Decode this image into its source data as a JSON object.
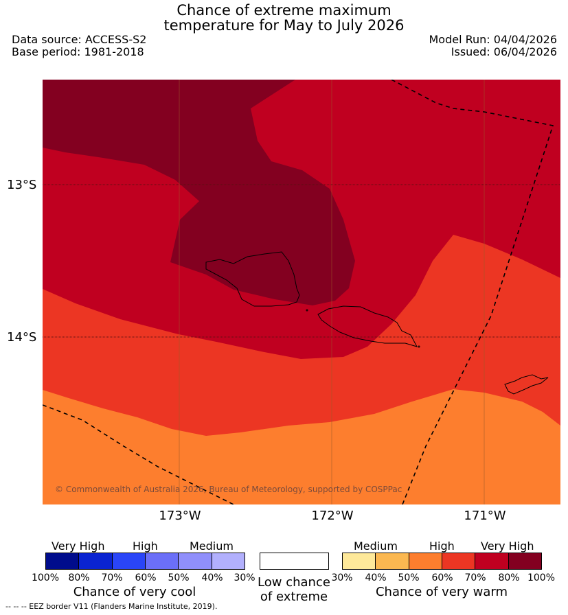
{
  "title_line1": "Chance of extreme maximum",
  "title_line2": "temperature for May to July 2026",
  "data_source": "Data source: ACCESS-S2",
  "base_period": "Base period: 1981-2018",
  "model_run": "Model Run: 04/04/2026",
  "issued": "Issued: 06/04/2026",
  "lat_labels": [
    "13°S",
    "14°S"
  ],
  "lon_labels": [
    "173°W",
    "172°W",
    "171°W"
  ],
  "copyright": "© Commonwealth of Australia 2026, Bureau of Meteorology, supported by COSPPac",
  "legend": {
    "cool": {
      "headers": [
        "Very High",
        "High",
        "Medium"
      ],
      "ticks": [
        "100%",
        "80%",
        "70%",
        "60%",
        "50%",
        "40%",
        "30%"
      ],
      "caption": "Chance of very cool",
      "colors": [
        "#000c8c",
        "#0a23d1",
        "#2a45f7",
        "#6b6ff8",
        "#908ffb",
        "#b2b0fd"
      ]
    },
    "low": {
      "caption_line1": "Low chance",
      "caption_line2": "of extreme",
      "color": "#ffffff"
    },
    "warm": {
      "headers": [
        "Medium",
        "High",
        "Very High"
      ],
      "ticks": [
        "30%",
        "40%",
        "50%",
        "60%",
        "70%",
        "80%",
        "100%"
      ],
      "caption": "Chance of very warm",
      "colors": [
        "#fee99a",
        "#fbb851",
        "#fd7e2e",
        "#ec3623",
        "#c00020",
        "#830020"
      ]
    }
  },
  "footnote": "--  --  -- EEZ border V11 (Flanders Marine Institute, 2019)."
}
